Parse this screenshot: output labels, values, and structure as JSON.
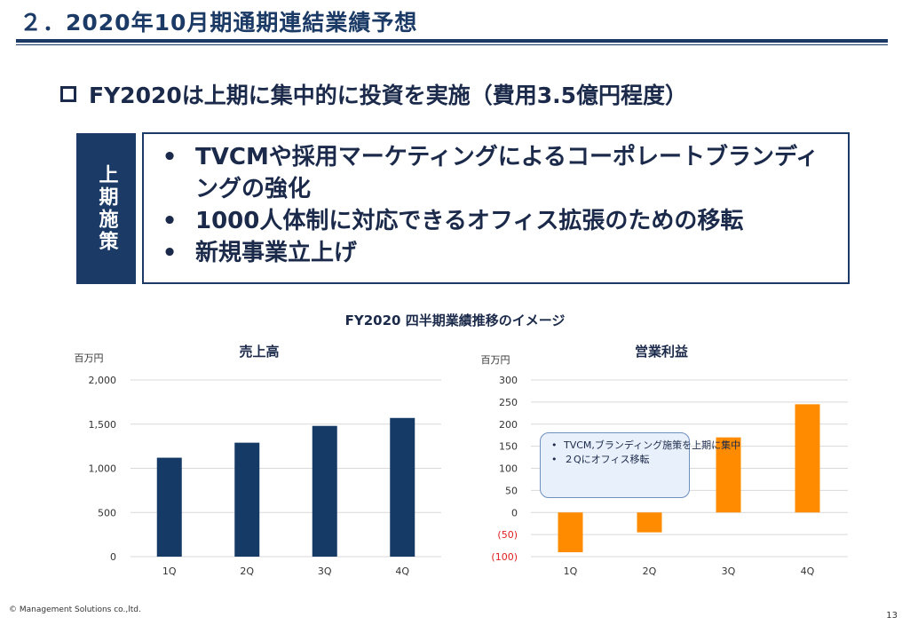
{
  "page": {
    "title": "２．2020年10月期通期連結業績予想",
    "headline": "FY2020は上期に集中的に投資を実施（費用3.5億円程度）",
    "side_label": "上期施策",
    "measures": [
      "TVCMや採用マーケティングによるコーポレートブランディングの強化",
      "1000人体制に対応できるオフィス拡張のための移転",
      "新規事業立上げ"
    ],
    "bullet": "•",
    "charts_heading": "FY2020 四半期業績推移のイメージ",
    "note": [
      "TVCM,ブランディング施策を上期に集中",
      "２Qにオフィス移転"
    ],
    "copyright": "© Management Solutions co.,ltd.",
    "page_number": "13"
  },
  "chart_data": [
    {
      "type": "bar",
      "title": "売上高",
      "unit_label": "百万円",
      "categories": [
        "1Q",
        "2Q",
        "3Q",
        "4Q"
      ],
      "values": [
        1120,
        1290,
        1480,
        1570
      ],
      "ylim": [
        0,
        2000
      ],
      "ytick_values": [
        0,
        500,
        1000,
        1500,
        2000
      ],
      "ytick_labels": [
        "0",
        "500",
        "1,000",
        "1,500",
        "2,000"
      ],
      "bar_color": "#163a66",
      "grid": true
    },
    {
      "type": "bar",
      "title": "営業利益",
      "unit_label": "百万円",
      "categories": [
        "1Q",
        "2Q",
        "3Q",
        "4Q"
      ],
      "values": [
        -90,
        -45,
        170,
        245
      ],
      "ylim": [
        -100,
        300
      ],
      "ytick_values": [
        -100,
        -50,
        0,
        50,
        100,
        150,
        200,
        250,
        300
      ],
      "ytick_labels": [
        "(100)",
        "(50)",
        "0",
        "50",
        "100",
        "150",
        "200",
        "250",
        "300"
      ],
      "negative_label_color": "#e02020",
      "bar_color": "#ff8c00",
      "grid": true
    }
  ]
}
